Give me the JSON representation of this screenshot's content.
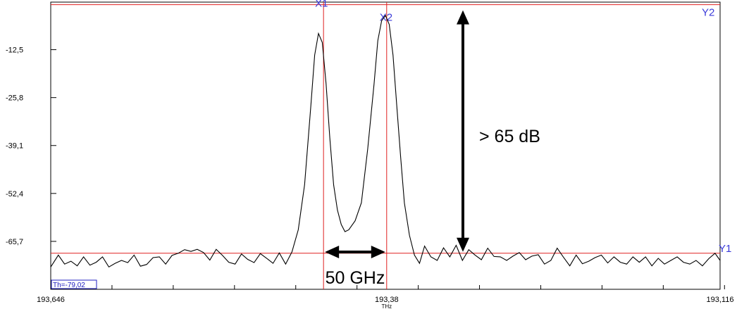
{
  "chart_data": {
    "type": "line",
    "xlabel": "",
    "ylabel": "",
    "x_unit": "THz",
    "x_axis_reversed": true,
    "xlim": [
      193.646,
      193.116
    ],
    "ylim": [
      -79.0,
      0.7
    ],
    "y_ticks": [
      "-12,5",
      "-25,8",
      "-39,1",
      "-52,4",
      "-65,7"
    ],
    "y_tick_values": [
      -12.5,
      -25.8,
      -39.1,
      -52.4,
      -65.7
    ],
    "x_ticks": [
      "193,646",
      "193,38",
      "193,116"
    ],
    "x_tick_values": [
      193.646,
      193.38,
      193.116
    ],
    "threshold_label": "Th=-79,02",
    "grid": false,
    "markers": {
      "X1": {
        "label": "X1",
        "x": 193.43
      },
      "X2": {
        "label": "X2",
        "x": 193.38
      },
      "Y1": {
        "label": "Y1",
        "y": -69.0
      },
      "Y2": {
        "label": "Y2",
        "y": 0.0
      }
    },
    "annotations": {
      "dynamic_range": "> 65 dB",
      "spacing": "50 GHz"
    },
    "series": [
      {
        "color": "#000000",
        "x": [
          193.646,
          193.64,
          193.635,
          193.63,
          193.625,
          193.62,
          193.615,
          193.61,
          193.605,
          193.6,
          193.595,
          193.59,
          193.585,
          193.58,
          193.575,
          193.57,
          193.565,
          193.56,
          193.555,
          193.55,
          193.545,
          193.54,
          193.535,
          193.53,
          193.525,
          193.52,
          193.515,
          193.51,
          193.505,
          193.5,
          193.495,
          193.49,
          193.485,
          193.48,
          193.475,
          193.47,
          193.465,
          193.46,
          193.455,
          193.45,
          193.445,
          193.44,
          193.437,
          193.434,
          193.431,
          193.428,
          193.425,
          193.422,
          193.419,
          193.416,
          193.413,
          193.41,
          193.405,
          193.4,
          193.395,
          193.39,
          193.387,
          193.384,
          193.381,
          193.378,
          193.375,
          193.372,
          193.369,
          193.366,
          193.362,
          193.358,
          193.354,
          193.35,
          193.345,
          193.34,
          193.335,
          193.33,
          193.325,
          193.32,
          193.315,
          193.31,
          193.305,
          193.3,
          193.295,
          193.29,
          193.285,
          193.28,
          193.275,
          193.27,
          193.265,
          193.26,
          193.255,
          193.25,
          193.245,
          193.24,
          193.235,
          193.23,
          193.225,
          193.22,
          193.215,
          193.21,
          193.205,
          193.2,
          193.195,
          193.19,
          193.185,
          193.18,
          193.175,
          193.17,
          193.165,
          193.16,
          193.155,
          193.15,
          193.145,
          193.14,
          193.135,
          193.13,
          193.125,
          193.12,
          193.116
        ],
        "y": [
          -72.8,
          -69.5,
          -72.0,
          -71.2,
          -72.5,
          -70.0,
          -72.3,
          -71.5,
          -70.0,
          -72.8,
          -71.8,
          -71.0,
          -71.6,
          -69.5,
          -72.6,
          -72.1,
          -70.2,
          -70.0,
          -72.0,
          -69.6,
          -69.0,
          -68.0,
          -68.5,
          -67.9,
          -68.8,
          -70.9,
          -67.9,
          -69.6,
          -71.5,
          -72.0,
          -69.2,
          -70.7,
          -71.6,
          -69.1,
          -70.4,
          -71.8,
          -68.9,
          -72.0,
          -68.6,
          -62.5,
          -50.0,
          -28.0,
          -14.0,
          -8.0,
          -10.5,
          -22.0,
          -37.0,
          -50.0,
          -57.0,
          -61.0,
          -63.0,
          -62.5,
          -60.0,
          -55.0,
          -40.0,
          -22.0,
          -10.0,
          -4.5,
          -3.0,
          -5.5,
          -14.0,
          -28.0,
          -42.0,
          -55.0,
          -64.0,
          -69.5,
          -71.8,
          -67.0,
          -70.0,
          -71.0,
          -67.5,
          -70.0,
          -66.8,
          -71.0,
          -68.0,
          -69.5,
          -70.8,
          -67.6,
          -69.9,
          -70.0,
          -71.0,
          -69.8,
          -68.8,
          -70.8,
          -69.8,
          -69.4,
          -72.0,
          -71.0,
          -67.6,
          -70.1,
          -72.5,
          -69.5,
          -71.9,
          -71.2,
          -70.2,
          -69.5,
          -71.7,
          -70.0,
          -71.5,
          -72.0,
          -70.0,
          -71.5,
          -70.0,
          -72.5,
          -70.4,
          -72.0,
          -71.0,
          -70.0,
          -71.5,
          -72.0,
          -71.0,
          -72.5,
          -70.5,
          -69.0,
          -71.0
        ]
      }
    ]
  }
}
